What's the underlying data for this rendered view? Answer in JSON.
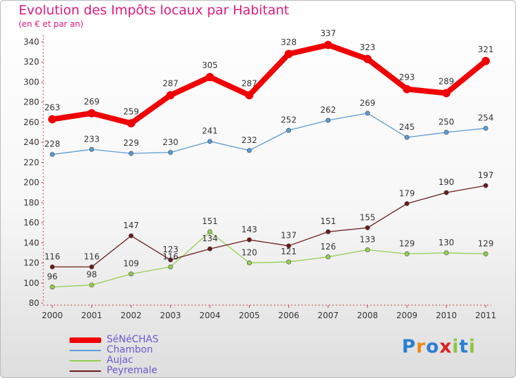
{
  "header": {
    "title": "Evolution des Impôts locaux par Habitant",
    "subtitle": "(en € et par an)"
  },
  "brand": {
    "logo_text": "Proxiti",
    "logo_letters": [
      {
        "ch": "P",
        "color": "#2a7fd4"
      },
      {
        "ch": "r",
        "color": "#f08a1c"
      },
      {
        "ch": "o",
        "color": "#2a7fd4"
      },
      {
        "ch": "x",
        "color": "#e02020"
      },
      {
        "ch": "i",
        "color": "#8cc63f"
      },
      {
        "ch": "t",
        "color": "#2a7fd4"
      },
      {
        "ch": "i",
        "color": "#8cc63f"
      }
    ]
  },
  "chart_data": {
    "type": "line",
    "title": "Evolution des Impôts locaux par Habitant",
    "subtitle": "(en € et par an)",
    "xlabel": "",
    "ylabel": "",
    "x": [
      "2000",
      "2001",
      "2002",
      "2003",
      "2004",
      "2005",
      "2006",
      "2007",
      "2008",
      "2009",
      "2010",
      "2011"
    ],
    "y_ticks": [
      80,
      100,
      120,
      140,
      160,
      180,
      200,
      220,
      240,
      260,
      280,
      300,
      320,
      340
    ],
    "ylim": [
      80,
      340
    ],
    "grid": false,
    "legend_position": "bottom-left",
    "series": [
      {
        "name": "SéNéCHAS",
        "color": "#f00000",
        "weight": "thick",
        "values": [
          263,
          269,
          259,
          287,
          305,
          287,
          328,
          337,
          323,
          293,
          289,
          321
        ]
      },
      {
        "name": "Chambon",
        "color": "#5b9bd5",
        "weight": "thin",
        "values": [
          228,
          233,
          229,
          230,
          241,
          232,
          252,
          262,
          269,
          245,
          250,
          254
        ]
      },
      {
        "name": "Aujac",
        "color": "#92d050",
        "weight": "thin",
        "values": [
          96,
          98,
          109,
          116,
          151,
          120,
          121,
          126,
          133,
          129,
          130,
          129
        ]
      },
      {
        "name": "Peyremale",
        "color": "#6b1a1a",
        "weight": "thin",
        "values": [
          116,
          116,
          147,
          123,
          134,
          143,
          137,
          151,
          155,
          179,
          190,
          197
        ]
      }
    ]
  }
}
